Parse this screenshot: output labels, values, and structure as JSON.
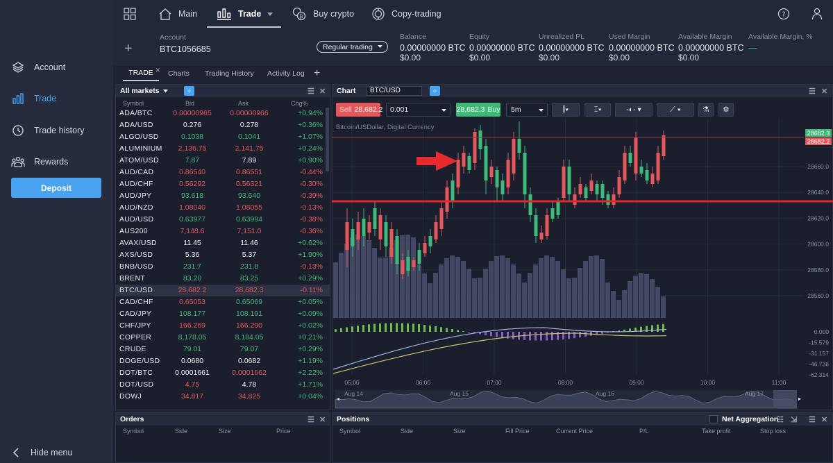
{
  "sidebar": {
    "items": [
      {
        "label": "Account",
        "icon": "layers-icon"
      },
      {
        "label": "Trade",
        "icon": "bar-chart-icon",
        "active": true
      },
      {
        "label": "Trade history",
        "icon": "clock-icon"
      },
      {
        "label": "Rewards",
        "icon": "people-icon"
      }
    ],
    "deposit_label": "Deposit",
    "hide_menu_label": "Hide menu"
  },
  "topnav": {
    "items": [
      {
        "label": "Main",
        "icon": "home-icon"
      },
      {
        "label": "Trade",
        "icon": "candles-icon",
        "active": true
      },
      {
        "label": "Buy crypto",
        "icon": "coins-icon"
      },
      {
        "label": "Copy-trading",
        "icon": "copy-trading-icon"
      }
    ]
  },
  "account": {
    "label": "Account",
    "id": "BTC1056685",
    "mode": "Regular trading",
    "stats": [
      {
        "label": "Balance",
        "value": "0.00000000 BTC",
        "sub": "$0.00"
      },
      {
        "label": "Equity",
        "value": "0.00000000 BTC",
        "sub": "$0.00"
      },
      {
        "label": "Unrealized PL",
        "value": "0.00000000 BTC",
        "sub": "$0.00"
      },
      {
        "label": "Used Margin",
        "value": "0.00000000 BTC",
        "sub": "$0.00"
      },
      {
        "label": "Available Margin",
        "value": "0.00000000 BTC",
        "sub": "$0.00"
      },
      {
        "label": "Available Margin, %",
        "value": "—",
        "sub": ""
      }
    ]
  },
  "tabs": [
    "TRADE",
    "Charts",
    "Trading History",
    "Activity Log"
  ],
  "markets": {
    "title": "All markets",
    "columns": [
      "Symbol",
      "Bid",
      "Ask",
      "Chg%"
    ],
    "rows": [
      {
        "symbol": "ADA/BTC",
        "bid": "0.00000965",
        "ask": "0.00000966",
        "chg": "+0.94%",
        "bidc": "red",
        "askc": "red"
      },
      {
        "symbol": "ADA/USD",
        "bid": "0.276",
        "ask": "0.278",
        "chg": "+0.36%",
        "bidc": "white",
        "askc": "white"
      },
      {
        "symbol": "ALGO/USD",
        "bid": "0.1038",
        "ask": "0.1041",
        "chg": "+1.07%",
        "bidc": "green",
        "askc": "green"
      },
      {
        "symbol": "ALUMINIUM",
        "bid": "2,136.75",
        "ask": "2,141.75",
        "chg": "+0.24%",
        "bidc": "red",
        "askc": "red"
      },
      {
        "symbol": "ATOM/USD",
        "bid": "7.87",
        "ask": "7.89",
        "chg": "+0.90%",
        "bidc": "green",
        "askc": "white"
      },
      {
        "symbol": "AUD/CAD",
        "bid": "0.86540",
        "ask": "0.86551",
        "chg": "-0.44%",
        "bidc": "red",
        "askc": "red"
      },
      {
        "symbol": "AUD/CHF",
        "bid": "0.56292",
        "ask": "0.56321",
        "chg": "-0.30%",
        "bidc": "red",
        "askc": "red"
      },
      {
        "symbol": "AUD/JPY",
        "bid": "93.618",
        "ask": "93.640",
        "chg": "-0.39%",
        "bidc": "green",
        "askc": "green"
      },
      {
        "symbol": "AUD/NZD",
        "bid": "1.08040",
        "ask": "1.08055",
        "chg": "-0.13%",
        "bidc": "red",
        "askc": "red"
      },
      {
        "symbol": "AUD/USD",
        "bid": "0.63977",
        "ask": "0.63994",
        "chg": "-0.38%",
        "bidc": "green",
        "askc": "green"
      },
      {
        "symbol": "AUS200",
        "bid": "7,148.6",
        "ask": "7,151.0",
        "chg": "-0.36%",
        "bidc": "red",
        "askc": "red"
      },
      {
        "symbol": "AVAX/USD",
        "bid": "11.45",
        "ask": "11.46",
        "chg": "+0.62%",
        "bidc": "white",
        "askc": "white"
      },
      {
        "symbol": "AXS/USD",
        "bid": "5.36",
        "ask": "5.37",
        "chg": "+1.90%",
        "bidc": "white",
        "askc": "white"
      },
      {
        "symbol": "BNB/USD",
        "bid": "231.7",
        "ask": "231.8",
        "chg": "-0.13%",
        "bidc": "green",
        "askc": "green"
      },
      {
        "symbol": "BRENT",
        "bid": "83.20",
        "ask": "83.25",
        "chg": "+0.29%",
        "bidc": "green",
        "askc": "green"
      },
      {
        "symbol": "BTC/USD",
        "bid": "28,682.2",
        "ask": "28,682.3",
        "chg": "-0.11%",
        "bidc": "red",
        "askc": "red",
        "selected": true
      },
      {
        "symbol": "CAD/CHF",
        "bid": "0.65053",
        "ask": "0.65069",
        "chg": "+0.05%",
        "bidc": "red",
        "askc": "green"
      },
      {
        "symbol": "CAD/JPY",
        "bid": "108.177",
        "ask": "108.191",
        "chg": "+0.09%",
        "bidc": "green",
        "askc": "green"
      },
      {
        "symbol": "CHF/JPY",
        "bid": "166.269",
        "ask": "166.290",
        "chg": "+0.02%",
        "bidc": "red",
        "askc": "red"
      },
      {
        "symbol": "COPPER",
        "bid": "8,178.05",
        "ask": "8,184.05",
        "chg": "+0.21%",
        "bidc": "green",
        "askc": "green"
      },
      {
        "symbol": "CRUDE",
        "bid": "79.01",
        "ask": "79.07",
        "chg": "+0.29%",
        "bidc": "green",
        "askc": "green"
      },
      {
        "symbol": "DOGE/USD",
        "bid": "0.0680",
        "ask": "0.0682",
        "chg": "+1.19%",
        "bidc": "white",
        "askc": "white"
      },
      {
        "symbol": "DOT/BTC",
        "bid": "0.0001661",
        "ask": "0.0001662",
        "chg": "+2.22%",
        "bidc": "white",
        "askc": "red"
      },
      {
        "symbol": "DOT/USD",
        "bid": "4.75",
        "ask": "4.78",
        "chg": "+1.71%",
        "bidc": "red",
        "askc": "white"
      },
      {
        "symbol": "DOWJ",
        "bid": "34,817",
        "ask": "34,825",
        "chg": "+0.04%",
        "bidc": "red",
        "askc": "red"
      }
    ]
  },
  "chart": {
    "title": "Chart",
    "symbol": "BTC/USD",
    "sell_label": "Sell",
    "sell_price": "28,682.2",
    "buy_price": "28,682.3",
    "buy_label": "Buy",
    "quantity": "0.001",
    "timeframe": "5m",
    "subtitle": "Bitcoin/USDollar, Digital Currency",
    "price_ticks": [
      "28660.0",
      "28640.0",
      "28620.0",
      "28600.0",
      "28580.0",
      "28560.0"
    ],
    "price_tags": {
      "ask": "28682.3",
      "bid": "28682.2"
    },
    "indicator_ticks": [
      "0.000",
      "-15.579",
      "-31.157",
      "-46.736",
      "-62.314"
    ],
    "time_ticks": [
      "05:00",
      "06:00",
      "07:00",
      "08:00",
      "09:00",
      "10:00",
      "11:00"
    ],
    "date_ticks": [
      "Aug 14",
      "Aug 15",
      "Aug 16",
      "Aug 17"
    ]
  },
  "orders": {
    "title": "Orders",
    "columns": [
      "Symbol",
      "Side",
      "Size",
      "Price"
    ]
  },
  "positions": {
    "title": "Positions",
    "net_aggregation_label": "Net Aggregation",
    "columns": [
      "Symbol",
      "Side",
      "Size",
      "Fill Price",
      "Current Price",
      "P/L",
      "Take profit",
      "Stop loss"
    ]
  },
  "colors": {
    "accent": "#4aa3f0",
    "bull": "#3fb978",
    "bear": "#e4575a",
    "background": "#1e2232"
  }
}
